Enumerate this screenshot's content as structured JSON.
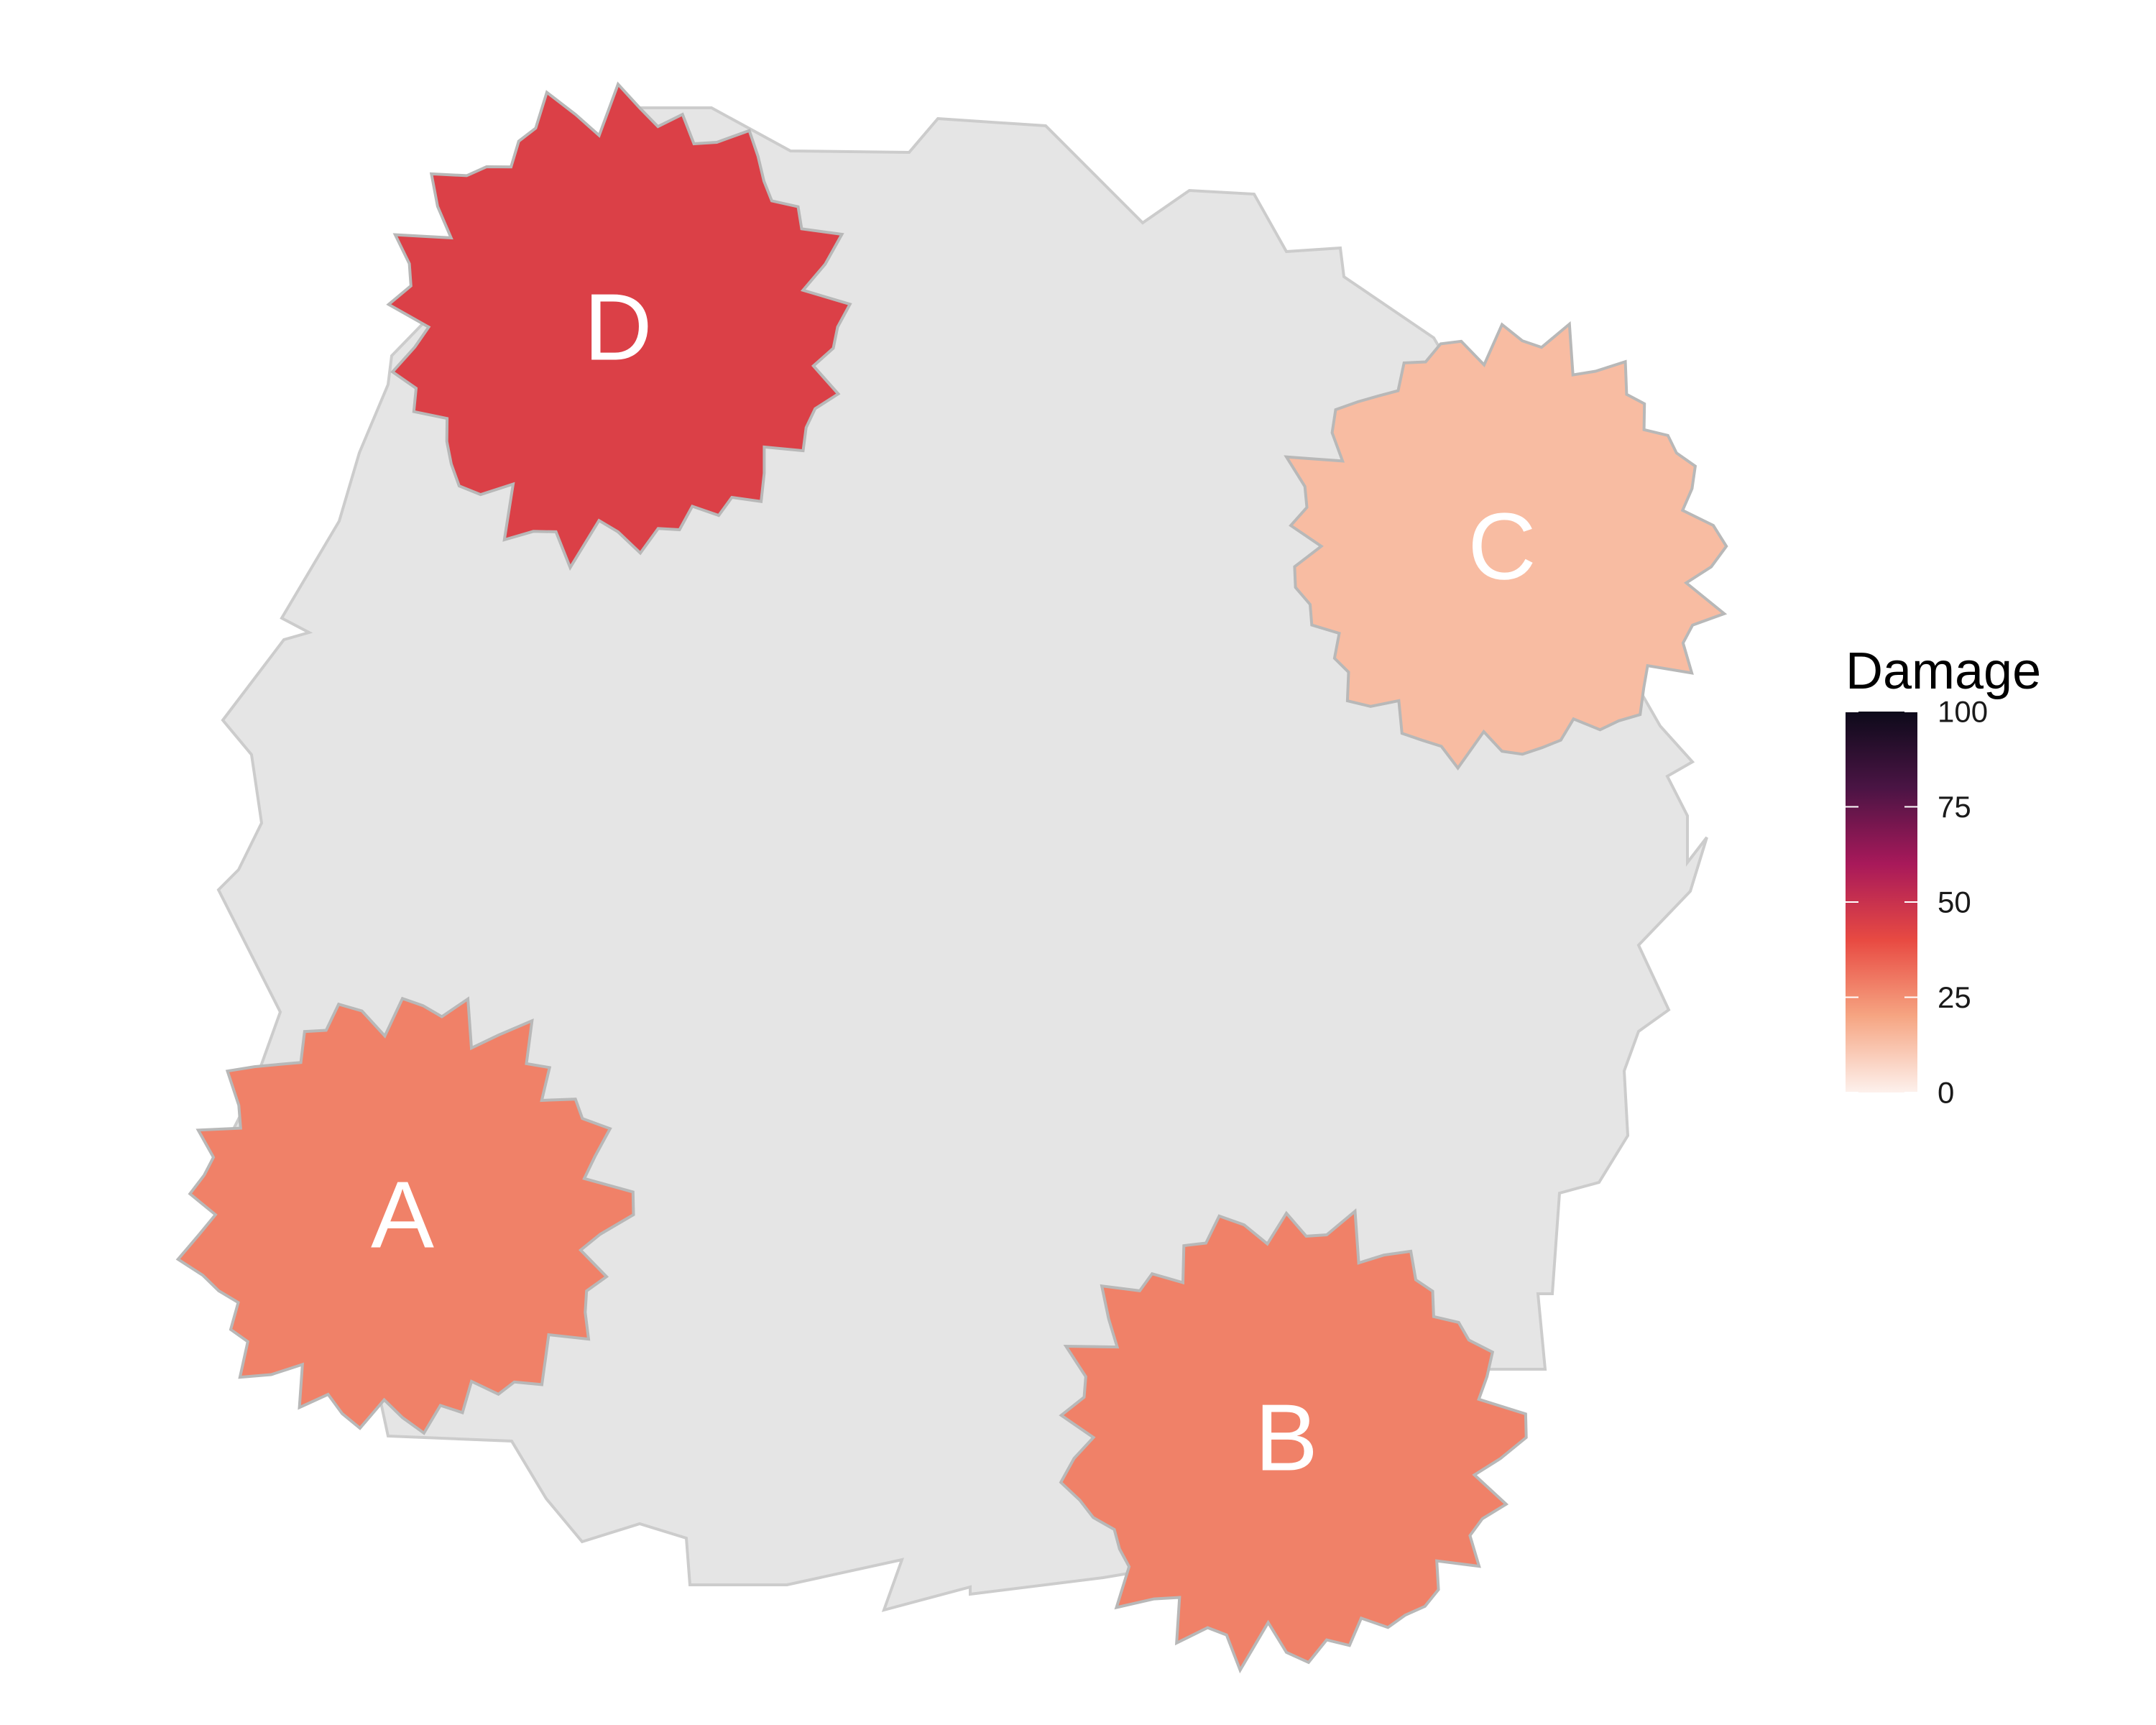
{
  "chart_data": {
    "type": "choropleth",
    "title": "",
    "legend": {
      "title": "Damage",
      "placement": "right",
      "min": 0,
      "max": 100,
      "ticks": [
        {
          "value": 100,
          "label": "100"
        },
        {
          "value": 75,
          "label": "75"
        },
        {
          "value": 50,
          "label": "50"
        },
        {
          "value": 25,
          "label": "25"
        },
        {
          "value": 0,
          "label": "0"
        }
      ],
      "palette": [
        "#fdf1ec",
        "#f6a582",
        "#e84a42",
        "#a8195a",
        "#4a1444",
        "#0d0a1a"
      ]
    },
    "regions": [
      {
        "label": "A",
        "damage": 28
      },
      {
        "label": "B",
        "damage": 28
      },
      {
        "label": "C",
        "damage": 14
      },
      {
        "label": "D",
        "damage": 44
      }
    ],
    "background_color": "#e5e5e5",
    "border_color": "#b8b8b8"
  }
}
